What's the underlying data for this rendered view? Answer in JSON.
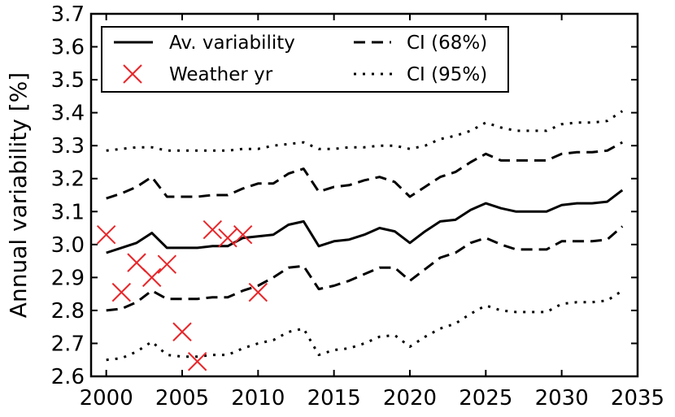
{
  "chart_data": {
    "type": "line",
    "title": "",
    "xlabel": "",
    "ylabel": "Annual variability [%]",
    "xlim": [
      1999,
      2035
    ],
    "ylim": [
      2.6,
      3.7
    ],
    "xticks": [
      2000,
      2005,
      2010,
      2015,
      2020,
      2025,
      2030,
      2035
    ],
    "xtick_labels": [
      "2000",
      "2005",
      "2010",
      "2015",
      "2020",
      "2025",
      "2030",
      "2035"
    ],
    "yticks": [
      2.6,
      2.7,
      2.8,
      2.9,
      3.0,
      3.1,
      3.2,
      3.3,
      3.4,
      3.5,
      3.6,
      3.7
    ],
    "ytick_labels": [
      "2.6",
      "2.7",
      "2.8",
      "2.9",
      "3.0",
      "3.1",
      "3.2",
      "3.3",
      "3.4",
      "3.5",
      "3.6",
      "3.7"
    ],
    "grid": false,
    "legend_position": "top-left",
    "x": [
      2000,
      2001,
      2002,
      2003,
      2004,
      2005,
      2006,
      2007,
      2008,
      2009,
      2010,
      2011,
      2012,
      2013,
      2014,
      2015,
      2016,
      2017,
      2018,
      2019,
      2020,
      2021,
      2022,
      2023,
      2024,
      2025,
      2026,
      2027,
      2028,
      2029,
      2030,
      2031,
      2032,
      2033,
      2034
    ],
    "series": [
      {
        "name": "Av. variability",
        "style": "solid",
        "color": "#000000",
        "values": [
          2.975,
          2.99,
          3.005,
          3.035,
          2.99,
          2.99,
          2.99,
          2.995,
          2.995,
          3.02,
          3.025,
          3.03,
          3.06,
          3.07,
          2.995,
          3.01,
          3.015,
          3.03,
          3.05,
          3.04,
          3.005,
          3.04,
          3.07,
          3.075,
          3.105,
          3.125,
          3.11,
          3.1,
          3.1,
          3.1,
          3.12,
          3.125,
          3.125,
          3.13,
          3.165
        ]
      },
      {
        "name": "CI (68%)",
        "style": "dashed",
        "color": "#000000",
        "values": [
          3.14,
          3.155,
          3.175,
          3.205,
          3.145,
          3.145,
          3.145,
          3.15,
          3.15,
          3.17,
          3.185,
          3.185,
          3.215,
          3.23,
          3.16,
          3.175,
          3.18,
          3.195,
          3.205,
          3.19,
          3.145,
          3.175,
          3.205,
          3.22,
          3.25,
          3.275,
          3.255,
          3.255,
          3.255,
          3.255,
          3.275,
          3.28,
          3.28,
          3.285,
          3.31
        ]
      },
      {
        "name": "CI (68%)",
        "style": "dashed",
        "color": "#000000",
        "values": [
          2.8,
          2.805,
          2.825,
          2.86,
          2.835,
          2.835,
          2.835,
          2.84,
          2.84,
          2.86,
          2.875,
          2.9,
          2.93,
          2.935,
          2.865,
          2.875,
          2.89,
          2.91,
          2.93,
          2.93,
          2.89,
          2.925,
          2.96,
          2.975,
          3.005,
          3.02,
          3.0,
          2.985,
          2.985,
          2.985,
          3.01,
          3.01,
          3.01,
          3.015,
          3.055
        ]
      },
      {
        "name": "CI (95%)",
        "style": "dotted",
        "color": "#000000",
        "values": [
          3.285,
          3.29,
          3.295,
          3.295,
          3.285,
          3.285,
          3.285,
          3.285,
          3.285,
          3.29,
          3.29,
          3.3,
          3.305,
          3.31,
          3.29,
          3.29,
          3.295,
          3.295,
          3.3,
          3.3,
          3.29,
          3.3,
          3.32,
          3.33,
          3.345,
          3.37,
          3.355,
          3.345,
          3.345,
          3.345,
          3.365,
          3.37,
          3.37,
          3.375,
          3.405
        ]
      },
      {
        "name": "CI (95%)",
        "style": "dotted",
        "color": "#000000",
        "values": [
          2.65,
          2.655,
          2.675,
          2.705,
          2.665,
          2.66,
          2.66,
          2.665,
          2.665,
          2.685,
          2.7,
          2.71,
          2.735,
          2.745,
          2.665,
          2.68,
          2.685,
          2.7,
          2.72,
          2.725,
          2.69,
          2.72,
          2.745,
          2.76,
          2.79,
          2.815,
          2.8,
          2.795,
          2.795,
          2.795,
          2.82,
          2.825,
          2.825,
          2.83,
          2.86
        ]
      }
    ],
    "scatter": {
      "name": "Weather yr",
      "marker": "x",
      "color": "#e8262a",
      "points": [
        {
          "x": 2000,
          "y": 3.03
        },
        {
          "x": 2001,
          "y": 2.855
        },
        {
          "x": 2002,
          "y": 2.945
        },
        {
          "x": 2003,
          "y": 2.9
        },
        {
          "x": 2004,
          "y": 2.94
        },
        {
          "x": 2005,
          "y": 2.735
        },
        {
          "x": 2006,
          "y": 2.645
        },
        {
          "x": 2007,
          "y": 3.045
        },
        {
          "x": 2008,
          "y": 3.02
        },
        {
          "x": 2009,
          "y": 3.03
        },
        {
          "x": 2010,
          "y": 2.855
        }
      ]
    },
    "legend": [
      {
        "label": "Av. variability",
        "style": "solid"
      },
      {
        "label": "CI (68%)",
        "style": "dashed"
      },
      {
        "label": "Weather yr",
        "style": "marker-x"
      },
      {
        "label": "CI (95%)",
        "style": "dotted"
      }
    ]
  }
}
